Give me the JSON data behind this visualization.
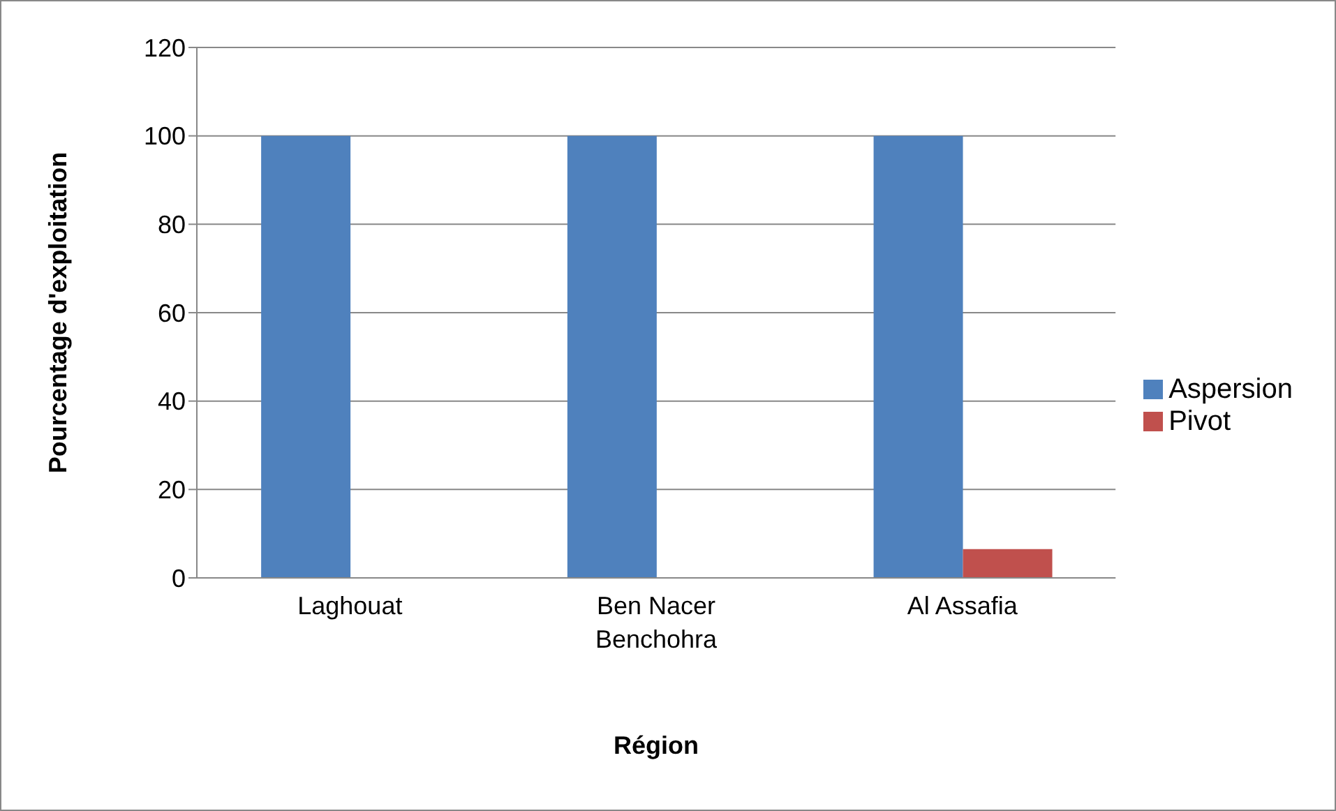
{
  "chart_data": {
    "type": "bar",
    "xlabel": "Région",
    "ylabel": "Pourcentage d'exploitation",
    "categories": [
      "Laghouat",
      "Ben Nacer Benchohra",
      "Al Assafia"
    ],
    "series": [
      {
        "name": "Aspersion",
        "color": "#4f81bd",
        "values": [
          100,
          100,
          100
        ]
      },
      {
        "name": "Pivot",
        "color": "#c0504d",
        "values": [
          0,
          0,
          6.5
        ]
      }
    ],
    "ylim": [
      0,
      120
    ],
    "yticks": [
      0,
      20,
      40,
      60,
      80,
      100,
      120
    ],
    "grid": "y",
    "legend": "right"
  }
}
